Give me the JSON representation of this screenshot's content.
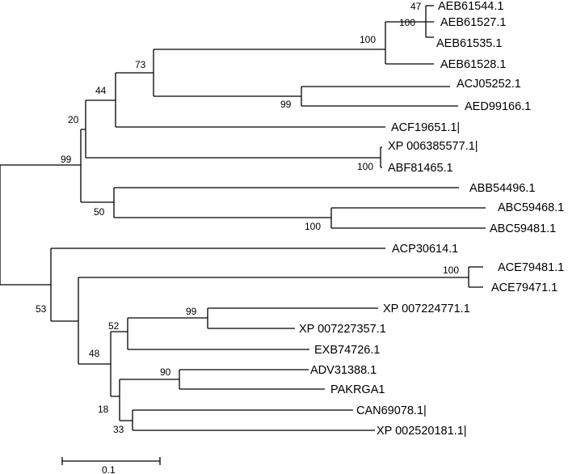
{
  "taxa": [
    "AEB61544.1",
    "AEB61527.1",
    "AEB61535.1",
    "AEB61528.1",
    "ACJ05252.1",
    "AED99166.1",
    "ACF19651.1|",
    "XP 006385577.1|",
    "ABF81465.1",
    "ABB54496.1",
    "ABC59468.1",
    "ABC59481.1",
    "ACP30614.1",
    "ACE79481.1",
    "ACE79471.1",
    "XP 007224771.1",
    "XP 007227357.1",
    "EXB74726.1",
    "ADV31388.1",
    "PAKRGA1",
    "CAN69078.1|",
    "XP 002520181.1|"
  ],
  "bootstrap": [
    "47",
    "100",
    "100",
    "73",
    "44",
    "99",
    "20",
    "99",
    "100",
    "50",
    "100",
    "100",
    "99",
    "52",
    "90",
    "48",
    "18",
    "33",
    "53"
  ],
  "scale_bar": {
    "label": "0.1"
  },
  "colors": {
    "line": "#000000",
    "background": "#ffffff"
  }
}
